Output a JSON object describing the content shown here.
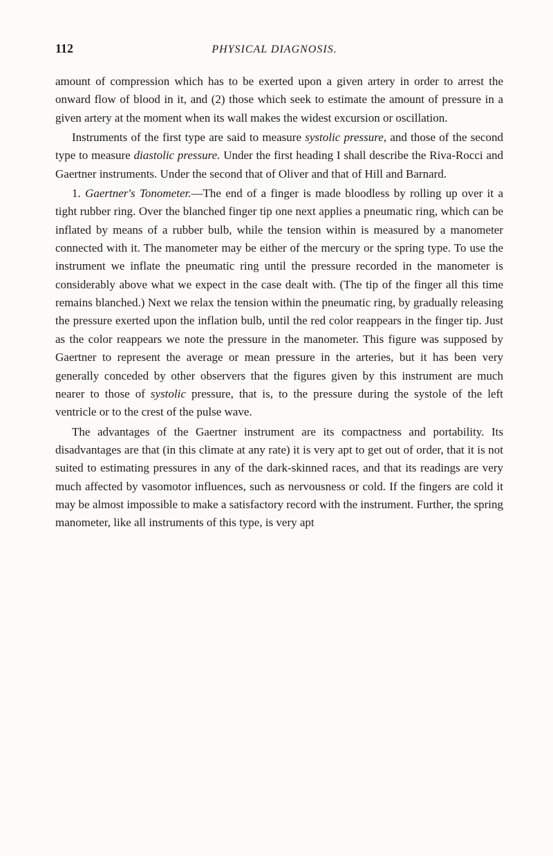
{
  "header": {
    "page_number": "112",
    "book_title": "PHYSICAL DIAGNOSIS."
  },
  "paragraphs": {
    "p1_part1": "amount of compression which has to be exerted upon a given artery in order to arrest the onward flow of blood in it, and (2) those which seek to estimate the amount of pressure in a given artery at the moment when its wall makes the widest excursion or oscillation.",
    "p2_part1": "Instruments of the first type are said to measure ",
    "p2_italic1": "systolic pressure,",
    "p2_part2": " and those of the second type to measure ",
    "p2_italic2": "diastolic pressure.",
    "p2_part3": " Under the first heading I shall describe the Riva-Rocci and Gaertner instruments. Under the second that of Oliver and that of Hill and Barnard.",
    "p3_part1": "1. ",
    "p3_italic1": "Gaertner's Tonometer.",
    "p3_part2": "—The end of a finger is made bloodless by rolling up over it a tight rubber ring. Over the blanched finger tip one next applies a pneumatic ring, which can be inflated by means of a rubber bulb, while the tension within is measured by a manometer connected with it. The manometer may be either of the mercury or the spring type. To use the instrument we inflate the pneumatic ring until the pressure recorded in the manometer is considerably above what we expect in the case dealt with. (The tip of the finger all this time remains blanched.) Next we relax the tension within the pneumatic ring, by gradually releasing the pressure exerted upon the inflation bulb, until the red color reappears in the finger tip. Just as the color reappears we note the pressure in the manometer. This figure was supposed by Gaertner to represent the average or mean pressure in the arteries, but it has been very generally conceded by other observers that the figures given by this instrument are much nearer to those of ",
    "p3_italic2": "systolic",
    "p3_part3": " pressure, that is, to the pressure during the systole of the left ventricle or to the crest of the pulse wave.",
    "p4_part1": "The advantages of the Gaertner instrument are its compactness and portability. Its disadvantages are that (in this climate at any rate) it is very apt to get out of order, that it is not suited to estimating pressures in any of the dark-skinned races, and that its readings are very much affected by vasomotor influences, such as nervousness or cold. If the fingers are cold it may be almost impossible to make a satisfactory record with the instrument. Further, the spring manometer, like all instruments of this type, is very apt"
  }
}
